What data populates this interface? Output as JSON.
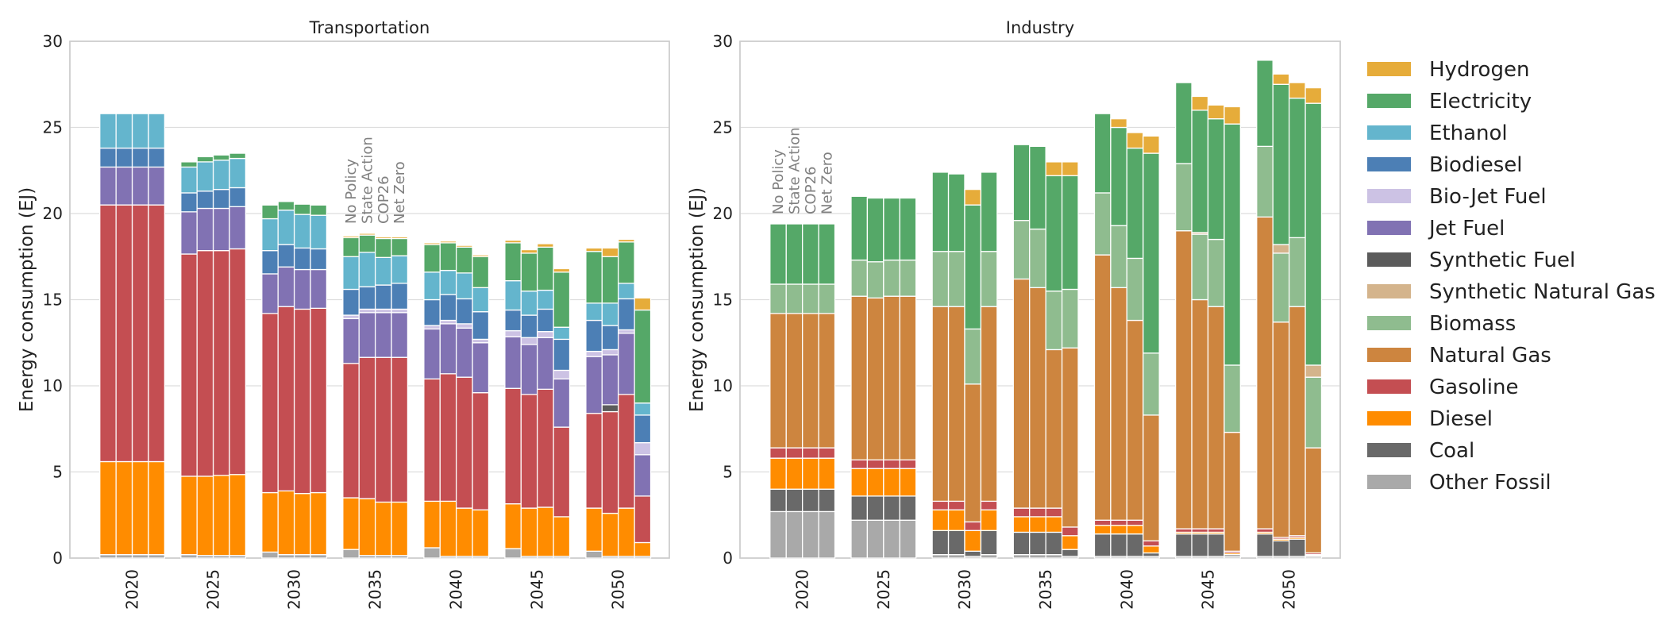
{
  "chart_data": {
    "type": "bar",
    "stacked": true,
    "grid": true,
    "legend_placement": "right",
    "xlabel": "",
    "ylabel": "Energy consumption (EJ)",
    "ylim": [
      0,
      30
    ],
    "yticks": [
      0,
      5,
      10,
      15,
      20,
      25,
      30
    ],
    "years": [
      "2020",
      "2025",
      "2030",
      "2035",
      "2040",
      "2045",
      "2050"
    ],
    "scenarios": [
      "No Policy",
      "State Action",
      "COP26",
      "Net Zero"
    ],
    "legend": [
      {
        "name": "Hydrogen",
        "color": "#E6AC3A"
      },
      {
        "name": "Electricity",
        "color": "#55A868"
      },
      {
        "name": "Ethanol",
        "color": "#64B5CD"
      },
      {
        "name": "Biodiesel",
        "color": "#4C7FB5"
      },
      {
        "name": "Bio-Jet Fuel",
        "color": "#CCC2E4"
      },
      {
        "name": "Jet Fuel",
        "color": "#8172B3"
      },
      {
        "name": "Synthetic Fuel",
        "color": "#5B5B5B"
      },
      {
        "name": "Synthetic Natural Gas",
        "color": "#D4B48C"
      },
      {
        "name": "Biomass",
        "color": "#8FBC8F"
      },
      {
        "name": "Natural Gas",
        "color": "#CD853F"
      },
      {
        "name": "Gasoline",
        "color": "#C44E52"
      },
      {
        "name": "Diesel",
        "color": "#FF8C00"
      },
      {
        "name": "Coal",
        "color": "#696969"
      },
      {
        "name": "Other Fossil",
        "color": "#A9A9A9"
      }
    ],
    "panels": [
      {
        "title": "Transportation",
        "label_year_index": 3,
        "data": [
          [
            {
              "Other Fossil": 0.2,
              "Jet Fuel": 2.2,
              "Diesel": 5.4,
              "Gasoline": 14.9,
              "Biodiesel": 1.1,
              "Ethanol": 2.0
            },
            {
              "Other Fossil": 0.2,
              "Jet Fuel": 2.2,
              "Diesel": 5.4,
              "Gasoline": 14.9,
              "Biodiesel": 1.1,
              "Ethanol": 2.0
            },
            {
              "Other Fossil": 0.2,
              "Jet Fuel": 2.2,
              "Diesel": 5.4,
              "Gasoline": 14.9,
              "Biodiesel": 1.1,
              "Ethanol": 2.0
            },
            {
              "Other Fossil": 0.2,
              "Jet Fuel": 2.2,
              "Diesel": 5.4,
              "Gasoline": 14.9,
              "Biodiesel": 1.1,
              "Ethanol": 2.0
            }
          ],
          [
            {
              "Other Fossil": 0.2,
              "Jet Fuel": 2.45,
              "Diesel": 4.55,
              "Gasoline": 12.9,
              "Biodiesel": 1.1,
              "Ethanol": 1.5,
              "Electricity": 0.3
            },
            {
              "Other Fossil": 0.15,
              "Jet Fuel": 2.45,
              "Diesel": 4.6,
              "Gasoline": 13.1,
              "Biodiesel": 1.0,
              "Ethanol": 1.7,
              "Electricity": 0.3
            },
            {
              "Other Fossil": 0.15,
              "Jet Fuel": 2.45,
              "Diesel": 4.65,
              "Gasoline": 13.05,
              "Biodiesel": 1.1,
              "Ethanol": 1.7,
              "Electricity": 0.3
            },
            {
              "Other Fossil": 0.15,
              "Jet Fuel": 2.45,
              "Diesel": 4.7,
              "Gasoline": 13.1,
              "Biodiesel": 1.1,
              "Ethanol": 1.7,
              "Electricity": 0.3
            }
          ],
          [
            {
              "Other Fossil": 0.35,
              "Jet Fuel": 2.3,
              "Diesel": 3.45,
              "Gasoline": 10.4,
              "Biodiesel": 1.35,
              "Ethanol": 1.85,
              "Electricity": 0.8,
              "Hydrogen": 0.05
            },
            {
              "Other Fossil": 0.2,
              "Jet Fuel": 2.3,
              "Diesel": 3.7,
              "Gasoline": 10.7,
              "Biodiesel": 1.3,
              "Ethanol": 2.0,
              "Electricity": 0.5,
              "Hydrogen": 0.05
            },
            {
              "Other Fossil": 0.2,
              "Jet Fuel": 2.3,
              "Diesel": 3.55,
              "Gasoline": 10.7,
              "Biodiesel": 1.25,
              "Ethanol": 1.95,
              "Electricity": 0.6,
              "Hydrogen": 0.05
            },
            {
              "Other Fossil": 0.2,
              "Jet Fuel": 2.25,
              "Diesel": 3.6,
              "Gasoline": 10.7,
              "Biodiesel": 1.2,
              "Ethanol": 1.95,
              "Electricity": 0.6,
              "Hydrogen": 0.05
            }
          ],
          [
            {
              "Other Fossil": 0.5,
              "Jet Fuel": 2.6,
              "Bio-Jet Fuel": 0.2,
              "Diesel": 3.0,
              "Gasoline": 7.8,
              "Biodiesel": 1.5,
              "Ethanol": 1.9,
              "Electricity": 1.1,
              "Hydrogen": 0.1
            },
            {
              "Other Fossil": 0.15,
              "Jet Fuel": 2.6,
              "Bio-Jet Fuel": 0.2,
              "Diesel": 3.3,
              "Gasoline": 8.2,
              "Biodiesel": 1.3,
              "Ethanol": 2.0,
              "Electricity": 1.0,
              "Hydrogen": 0.1
            },
            {
              "Other Fossil": 0.15,
              "Jet Fuel": 2.6,
              "Bio-Jet Fuel": 0.2,
              "Diesel": 3.1,
              "Gasoline": 8.4,
              "Biodiesel": 1.4,
              "Ethanol": 1.6,
              "Electricity": 1.1,
              "Hydrogen": 0.1
            },
            {
              "Other Fossil": 0.15,
              "Jet Fuel": 2.6,
              "Bio-Jet Fuel": 0.2,
              "Diesel": 3.1,
              "Gasoline": 8.4,
              "Biodiesel": 1.5,
              "Ethanol": 1.6,
              "Electricity": 1.0,
              "Hydrogen": 0.1
            }
          ],
          [
            {
              "Other Fossil": 0.6,
              "Jet Fuel": 2.9,
              "Bio-Jet Fuel": 0.2,
              "Diesel": 2.7,
              "Gasoline": 7.1,
              "Biodiesel": 1.5,
              "Ethanol": 1.6,
              "Electricity": 1.6,
              "Hydrogen": 0.1
            },
            {
              "Other Fossil": 0.1,
              "Jet Fuel": 2.9,
              "Bio-Jet Fuel": 0.2,
              "Diesel": 3.2,
              "Gasoline": 7.4,
              "Biodiesel": 1.5,
              "Ethanol": 1.4,
              "Electricity": 1.6,
              "Hydrogen": 0.1
            },
            {
              "Other Fossil": 0.1,
              "Jet Fuel": 2.85,
              "Bio-Jet Fuel": 0.25,
              "Diesel": 2.8,
              "Gasoline": 7.6,
              "Biodiesel": 1.45,
              "Ethanol": 1.5,
              "Electricity": 1.5,
              "Hydrogen": 0.1
            },
            {
              "Other Fossil": 0.1,
              "Jet Fuel": 2.9,
              "Bio-Jet Fuel": 0.2,
              "Diesel": 2.7,
              "Gasoline": 6.8,
              "Biodiesel": 1.6,
              "Ethanol": 1.4,
              "Electricity": 1.8,
              "Hydrogen": 0.1
            }
          ],
          [
            {
              "Other Fossil": 0.55,
              "Jet Fuel": 3.0,
              "Bio-Jet Fuel": 0.35,
              "Diesel": 2.6,
              "Gasoline": 6.7,
              "Biodiesel": 1.2,
              "Ethanol": 1.7,
              "Electricity": 2.2,
              "Hydrogen": 0.15
            },
            {
              "Other Fossil": 0.1,
              "Jet Fuel": 2.9,
              "Bio-Jet Fuel": 0.4,
              "Diesel": 2.8,
              "Gasoline": 6.6,
              "Biodiesel": 1.3,
              "Ethanol": 1.4,
              "Electricity": 2.2,
              "Hydrogen": 0.2
            },
            {
              "Other Fossil": 0.1,
              "Jet Fuel": 3.0,
              "Bio-Jet Fuel": 0.35,
              "Diesel": 2.85,
              "Gasoline": 6.85,
              "Biodiesel": 1.3,
              "Ethanol": 1.1,
              "Electricity": 2.5,
              "Hydrogen": 0.2
            },
            {
              "Other Fossil": 0.1,
              "Jet Fuel": 2.8,
              "Bio-Jet Fuel": 0.5,
              "Diesel": 2.3,
              "Gasoline": 5.2,
              "Biodiesel": 1.8,
              "Ethanol": 0.7,
              "Electricity": 3.2,
              "Hydrogen": 0.2
            }
          ],
          [
            {
              "Other Fossil": 0.4,
              "Jet Fuel": 3.3,
              "Bio-Jet Fuel": 0.3,
              "Diesel": 2.5,
              "Gasoline": 5.5,
              "Biodiesel": 1.8,
              "Ethanol": 1.0,
              "Electricity": 3.0,
              "Hydrogen": 0.2
            },
            {
              "Other Fossil": 0.1,
              "Jet Fuel": 2.9,
              "Bio-Jet Fuel": 0.3,
              "Diesel": 2.5,
              "Gasoline": 5.9,
              "Biodiesel": 1.4,
              "Ethanol": 1.3,
              "Synthetic Fuel": 0.4,
              "Electricity": 2.7,
              "Hydrogen": 0.5
            },
            {
              "Other Fossil": 0.1,
              "Jet Fuel": 3.55,
              "Bio-Jet Fuel": 0.2,
              "Diesel": 2.8,
              "Gasoline": 6.6,
              "Biodiesel": 1.8,
              "Ethanol": 0.9,
              "Electricity": 2.4,
              "Hydrogen": 0.15
            },
            {
              "Other Fossil": 0.1,
              "Jet Fuel": 2.4,
              "Bio-Jet Fuel": 0.7,
              "Diesel": 0.8,
              "Gasoline": 2.7,
              "Biodiesel": 1.6,
              "Ethanol": 0.7,
              "Electricity": 5.4,
              "Hydrogen": 0.7
            }
          ]
        ]
      },
      {
        "title": "Industry",
        "label_year_index": 0,
        "data": [
          [
            {
              "Other Fossil": 2.7,
              "Coal": 1.3,
              "Diesel": 1.8,
              "Gasoline": 0.6,
              "Natural Gas": 7.8,
              "Biomass": 1.7,
              "Electricity": 3.5
            },
            {
              "Other Fossil": 2.7,
              "Coal": 1.3,
              "Diesel": 1.8,
              "Gasoline": 0.6,
              "Natural Gas": 7.8,
              "Biomass": 1.7,
              "Electricity": 3.5
            },
            {
              "Other Fossil": 2.7,
              "Coal": 1.3,
              "Diesel": 1.8,
              "Gasoline": 0.6,
              "Natural Gas": 7.8,
              "Biomass": 1.7,
              "Electricity": 3.5
            },
            {
              "Other Fossil": 2.7,
              "Coal": 1.3,
              "Diesel": 1.8,
              "Gasoline": 0.6,
              "Natural Gas": 7.8,
              "Biomass": 1.7,
              "Electricity": 3.5
            }
          ],
          [
            {
              "Other Fossil": 2.2,
              "Coal": 1.4,
              "Diesel": 1.6,
              "Gasoline": 0.5,
              "Natural Gas": 9.5,
              "Biomass": 2.1,
              "Electricity": 3.7
            },
            {
              "Other Fossil": 2.2,
              "Coal": 1.4,
              "Diesel": 1.6,
              "Gasoline": 0.5,
              "Natural Gas": 9.4,
              "Biomass": 2.1,
              "Electricity": 3.7
            },
            {
              "Other Fossil": 2.2,
              "Coal": 1.4,
              "Diesel": 1.6,
              "Gasoline": 0.5,
              "Natural Gas": 9.5,
              "Biomass": 2.1,
              "Electricity": 3.6
            },
            {
              "Other Fossil": 2.2,
              "Coal": 1.4,
              "Diesel": 1.6,
              "Gasoline": 0.5,
              "Natural Gas": 9.5,
              "Biomass": 2.1,
              "Electricity": 3.6
            }
          ],
          [
            {
              "Other Fossil": 0.2,
              "Coal": 1.4,
              "Diesel": 1.2,
              "Gasoline": 0.5,
              "Natural Gas": 11.3,
              "Biomass": 3.2,
              "Electricity": 4.6
            },
            {
              "Other Fossil": 0.2,
              "Coal": 1.4,
              "Diesel": 1.2,
              "Gasoline": 0.5,
              "Natural Gas": 11.3,
              "Biomass": 3.2,
              "Electricity": 4.5
            },
            {
              "Other Fossil": 0.1,
              "Coal": 0.3,
              "Diesel": 1.2,
              "Gasoline": 0.5,
              "Natural Gas": 8.0,
              "Biomass": 3.2,
              "Electricity": 7.2,
              "Hydrogen": 0.9
            },
            {
              "Other Fossil": 0.2,
              "Coal": 1.4,
              "Diesel": 1.2,
              "Gasoline": 0.5,
              "Natural Gas": 11.3,
              "Biomass": 3.2,
              "Electricity": 4.6
            }
          ],
          [
            {
              "Other Fossil": 0.2,
              "Coal": 1.3,
              "Diesel": 0.9,
              "Gasoline": 0.5,
              "Natural Gas": 13.3,
              "Biomass": 3.4,
              "Electricity": 4.4
            },
            {
              "Other Fossil": 0.2,
              "Coal": 1.3,
              "Diesel": 0.9,
              "Gasoline": 0.5,
              "Natural Gas": 12.8,
              "Biomass": 3.4,
              "Electricity": 4.8
            },
            {
              "Other Fossil": 0.2,
              "Coal": 1.3,
              "Diesel": 0.9,
              "Gasoline": 0.5,
              "Natural Gas": 9.2,
              "Biomass": 3.4,
              "Electricity": 6.7,
              "Hydrogen": 0.8
            },
            {
              "Other Fossil": 0.1,
              "Coal": 0.4,
              "Diesel": 0.8,
              "Gasoline": 0.5,
              "Natural Gas": 10.4,
              "Biomass": 3.4,
              "Electricity": 6.6,
              "Hydrogen": 0.8
            }
          ],
          [
            {
              "Other Fossil": 0.1,
              "Coal": 1.3,
              "Diesel": 0.5,
              "Gasoline": 0.3,
              "Natural Gas": 15.4,
              "Biomass": 3.6,
              "Electricity": 4.6
            },
            {
              "Other Fossil": 0.1,
              "Coal": 1.3,
              "Diesel": 0.5,
              "Gasoline": 0.3,
              "Natural Gas": 13.5,
              "Biomass": 3.6,
              "Electricity": 5.7,
              "Hydrogen": 0.5
            },
            {
              "Other Fossil": 0.1,
              "Coal": 1.3,
              "Diesel": 0.5,
              "Gasoline": 0.3,
              "Natural Gas": 11.6,
              "Biomass": 3.6,
              "Electricity": 6.4,
              "Hydrogen": 0.9
            },
            {
              "Other Fossil": 0.1,
              "Coal": 0.2,
              "Diesel": 0.4,
              "Gasoline": 0.3,
              "Natural Gas": 7.3,
              "Biomass": 3.6,
              "Electricity": 11.6,
              "Hydrogen": 1.0
            }
          ],
          [
            {
              "Other Fossil": 0.1,
              "Coal": 1.3,
              "Diesel": 0.1,
              "Gasoline": 0.2,
              "Natural Gas": 17.3,
              "Biomass": 3.9,
              "Electricity": 4.7
            },
            {
              "Other Fossil": 0.1,
              "Coal": 1.3,
              "Diesel": 0.1,
              "Gasoline": 0.2,
              "Natural Gas": 13.3,
              "Synthetic Natural Gas": 0.1,
              "Biomass": 3.8,
              "Electricity": 7.1,
              "Hydrogen": 0.8
            },
            {
              "Other Fossil": 0.1,
              "Coal": 1.3,
              "Diesel": 0.1,
              "Gasoline": 0.2,
              "Natural Gas": 12.9,
              "Biomass": 3.9,
              "Electricity": 7.0,
              "Hydrogen": 0.8
            },
            {
              "Other Fossil": 0.1,
              "Coal": 0.1,
              "Diesel": 0.1,
              "Gasoline": 0.1,
              "Natural Gas": 6.9,
              "Biomass": 3.9,
              "Electricity": 14.0,
              "Hydrogen": 1.0
            }
          ],
          [
            {
              "Other Fossil": 0.1,
              "Coal": 1.3,
              "Diesel": 0.1,
              "Gasoline": 0.2,
              "Natural Gas": 18.1,
              "Biomass": 4.1,
              "Electricity": 5.0
            },
            {
              "Other Fossil": 0.1,
              "Coal": 0.9,
              "Diesel": 0.1,
              "Gasoline": 0.1,
              "Natural Gas": 12.5,
              "Synthetic Natural Gas": 0.5,
              "Biomass": 4.0,
              "Electricity": 9.3,
              "Hydrogen": 0.6
            },
            {
              "Other Fossil": 0.1,
              "Coal": 1.0,
              "Diesel": 0.1,
              "Gasoline": 0.1,
              "Natural Gas": 13.3,
              "Biomass": 4.0,
              "Electricity": 8.1,
              "Hydrogen": 0.9
            },
            {
              "Other Fossil": 0.1,
              "Coal": 0.05,
              "Diesel": 0.05,
              "Gasoline": 0.1,
              "Natural Gas": 6.1,
              "Synthetic Natural Gas": 0.7,
              "Biomass": 4.1,
              "Electricity": 15.2,
              "Hydrogen": 0.9
            }
          ]
        ]
      }
    ]
  }
}
